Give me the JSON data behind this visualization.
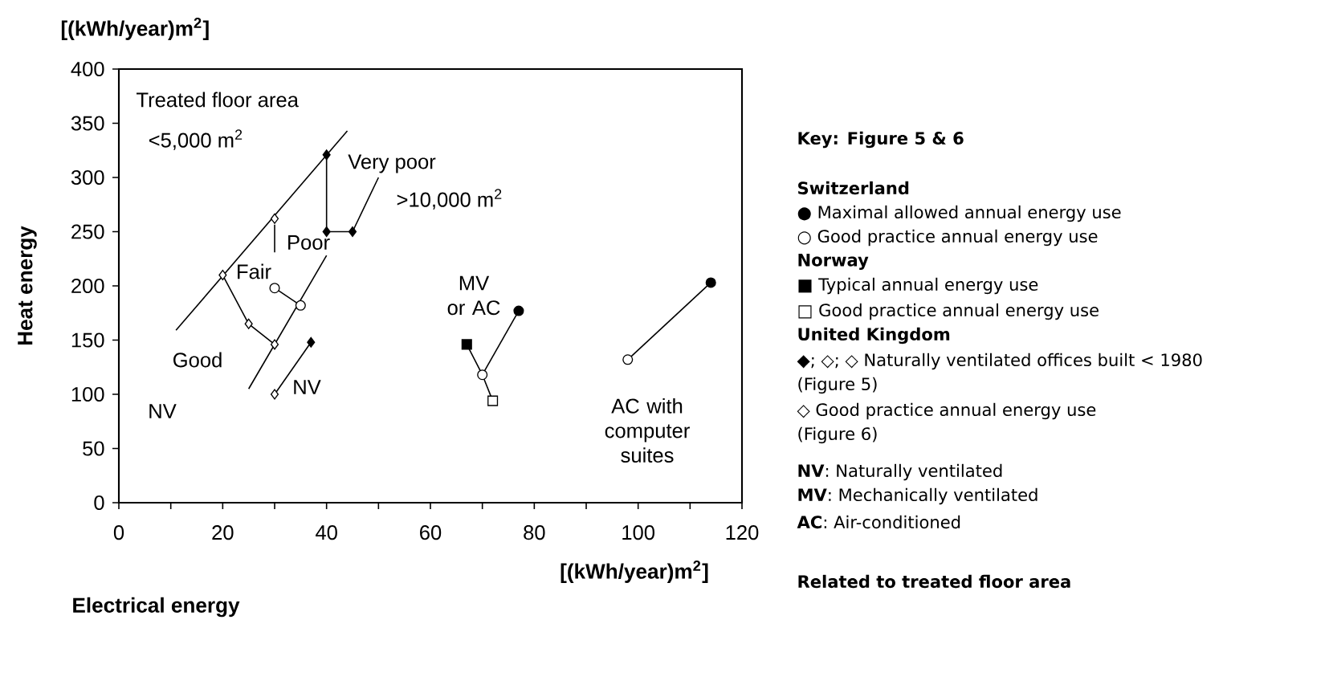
{
  "chart_data": {
    "type": "line",
    "xlabel": "Electrical energy",
    "ylabel": "Heat energy",
    "xlim": [
      0,
      120
    ],
    "ylim": [
      0,
      400
    ],
    "xticks": [
      0,
      {
        "value": 10,
        "label": null
      },
      20,
      {
        "value": 30,
        "label": null
      },
      40,
      {
        "value": 50,
        "label": null
      },
      60,
      {
        "value": 70,
        "label": null
      },
      80,
      {
        "value": 90,
        "label": null
      },
      100,
      {
        "value": 110,
        "label": null
      },
      120
    ],
    "yticks": [
      0,
      50,
      100,
      150,
      200,
      250,
      300,
      350,
      400
    ],
    "series": [
      {
        "color": "#000000",
        "marker": "none",
        "x": [
          11,
          44
        ],
        "values": [
          159,
          343
        ]
      },
      {
        "color": "#000000",
        "marker": "none",
        "x": [
          25,
          40
        ],
        "values": [
          105,
          228
        ]
      },
      {
        "color": "#000000",
        "marker": "none",
        "x": [
          40,
          40,
          45,
          50
        ],
        "values": [
          321,
          250,
          250,
          300
        ]
      },
      {
        "color": "#000000",
        "marker": "none",
        "x": [
          20,
          25,
          30
        ],
        "values": [
          210,
          165,
          146
        ]
      },
      {
        "color": "#000000",
        "marker": "none",
        "x": [
          30,
          35
        ],
        "values": [
          198,
          182
        ]
      },
      {
        "color": "#000000",
        "marker": "none",
        "x": [
          30,
          37
        ],
        "values": [
          100,
          148
        ]
      },
      {
        "color": "#000000",
        "marker": "none",
        "x": [
          67,
          70,
          72
        ],
        "values": [
          146,
          118,
          94
        ]
      },
      {
        "color": "#000000",
        "marker": "none",
        "x": [
          70,
          77
        ],
        "values": [
          118,
          177
        ]
      },
      {
        "color": "#000000",
        "marker": "none",
        "x": [
          98,
          114
        ],
        "values": [
          132,
          203
        ]
      },
      {
        "type": "scatter",
        "color": "#000000",
        "marker": "diamond",
        "x": [
          40,
          40,
          45,
          37
        ],
        "values": [
          321,
          250,
          250,
          148
        ]
      },
      {
        "type": "scatter",
        "color": "#ffffff",
        "marker": "diamond",
        "x": [
          20,
          25,
          30,
          30,
          30
        ],
        "values": [
          210,
          165,
          146,
          262,
          100
        ]
      },
      {
        "type": "scatter",
        "color": "#ffffff",
        "marker": "circle",
        "x": [
          30,
          35,
          70,
          98
        ],
        "values": [
          198,
          182,
          118,
          132
        ]
      },
      {
        "type": "scatter",
        "color": "#000000",
        "marker": "circle",
        "x": [
          77,
          114
        ],
        "values": [
          177,
          203
        ]
      },
      {
        "type": "scatter",
        "color": "#000000",
        "marker": "square",
        "x": [
          67
        ],
        "values": [
          146
        ]
      },
      {
        "type": "scatter",
        "color": "#ffffff",
        "marker": "square",
        "x": [
          72
        ],
        "values": [
          94
        ]
      }
    ],
    "annotations": [
      "[(kWh/year)m$^{2}$]",
      "[(kWh/year)m$^{2}$]",
      "**Key: Figure 5 & 6**",
      "**Switzerland**",
      "● Maximal allowed annual energy use",
      "○ Good practice annual energy use",
      "**Norway**",
      "■ Typical annual energy use",
      "□ Good practice annual energy use",
      "**United Kingdom**",
      "◆; ◇; ◇ Naturally ventilated offices built < 1980",
      "(Figure 5)",
      "◇ Good practice annual energy use",
      "(Figure 6)",
      "**NV**: Naturally ventilated",
      "**MV**: Mechanically ventilated",
      "**AC**: Air-conditioned",
      "**Related to treated floor area**",
      "Treated floor area",
      "<5,000 m$^{2}$",
      "Very poor",
      ">10,000 m$^{2}$",
      "Poor",
      "Fair",
      "Good",
      "NV",
      "NV",
      "MV or AC",
      "AC with computer suites"
    ]
  }
}
